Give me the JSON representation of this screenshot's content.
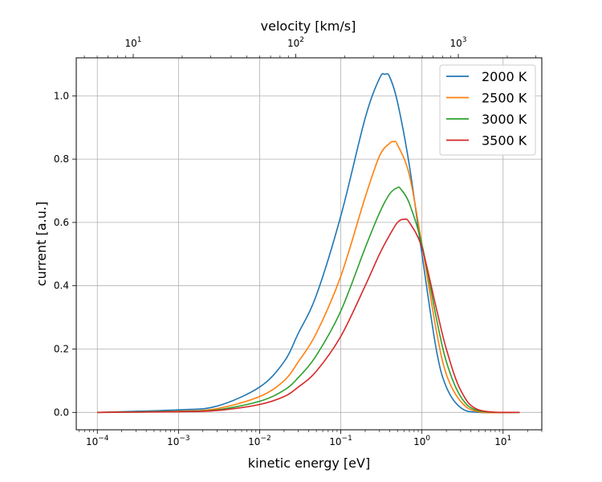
{
  "chart_data": {
    "type": "line",
    "xlabel": "kinetic energy [eV]",
    "ylabel": "current [a.u.]",
    "x2label": "velocity [km/s]",
    "xscale": "log",
    "x2scale": "log",
    "xlim": [
      5.5e-05,
      30
    ],
    "ylim": [
      -0.055,
      1.12
    ],
    "x_ticks": [
      {
        "base": "10",
        "exp": "−4",
        "value": 0.0001
      },
      {
        "base": "10",
        "exp": "−3",
        "value": 0.001
      },
      {
        "base": "10",
        "exp": "−2",
        "value": 0.01
      },
      {
        "base": "10",
        "exp": "−1",
        "value": 0.1
      },
      {
        "base": "10",
        "exp": "0",
        "value": 1
      },
      {
        "base": "10",
        "exp": "1",
        "value": 10
      }
    ],
    "x2_ticks": [
      {
        "base": "10",
        "exp": "1",
        "value": 10
      },
      {
        "base": "10",
        "exp": "2",
        "value": 100
      },
      {
        "base": "10",
        "exp": "3",
        "value": 1000
      }
    ],
    "y_ticks": [
      "0.0",
      "0.2",
      "0.4",
      "0.6",
      "0.8",
      "1.0"
    ],
    "grid": true,
    "legend_position": "upper right",
    "series": [
      {
        "name": "2000 K",
        "color": "#1f77b4",
        "x": [
          0.0001,
          0.001,
          0.003,
          0.01,
          0.02,
          0.03,
          0.05,
          0.1,
          0.2,
          0.3,
          0.35,
          0.4,
          0.5,
          0.7,
          1.0,
          1.5,
          2.0,
          3.0,
          5.0,
          16.0
        ],
        "y": [
          0.0,
          0.008,
          0.02,
          0.08,
          0.16,
          0.25,
          0.37,
          0.62,
          0.93,
          1.055,
          1.068,
          1.06,
          0.98,
          0.78,
          0.5,
          0.2,
          0.08,
          0.015,
          0.0,
          0.0
        ]
      },
      {
        "name": "2500 K",
        "color": "#ff7f0e",
        "x": [
          0.0001,
          0.001,
          0.003,
          0.01,
          0.02,
          0.03,
          0.05,
          0.1,
          0.2,
          0.3,
          0.4,
          0.45,
          0.5,
          0.7,
          1.0,
          1.5,
          2.0,
          3.0,
          5.0,
          16.0
        ],
        "y": [
          0.0,
          0.004,
          0.012,
          0.05,
          0.1,
          0.16,
          0.25,
          0.43,
          0.68,
          0.81,
          0.85,
          0.855,
          0.845,
          0.75,
          0.53,
          0.26,
          0.12,
          0.035,
          0.002,
          0.0
        ]
      },
      {
        "name": "3000 K",
        "color": "#2ca02c",
        "x": [
          0.0001,
          0.001,
          0.003,
          0.01,
          0.02,
          0.03,
          0.05,
          0.1,
          0.2,
          0.3,
          0.4,
          0.5,
          0.55,
          0.7,
          1.0,
          1.5,
          2.0,
          3.0,
          5.0,
          16.0
        ],
        "y": [
          0.0,
          0.003,
          0.008,
          0.035,
          0.07,
          0.11,
          0.18,
          0.32,
          0.52,
          0.63,
          0.69,
          0.71,
          0.705,
          0.66,
          0.53,
          0.3,
          0.16,
          0.05,
          0.005,
          0.0
        ]
      },
      {
        "name": "3500 K",
        "color": "#d62728",
        "x": [
          0.0001,
          0.001,
          0.003,
          0.01,
          0.02,
          0.03,
          0.05,
          0.1,
          0.2,
          0.3,
          0.4,
          0.5,
          0.6,
          0.7,
          1.0,
          1.5,
          2.0,
          3.0,
          5.0,
          16.0
        ],
        "y": [
          0.0,
          0.002,
          0.006,
          0.025,
          0.05,
          0.08,
          0.13,
          0.24,
          0.4,
          0.5,
          0.56,
          0.6,
          0.61,
          0.6,
          0.52,
          0.33,
          0.2,
          0.07,
          0.008,
          0.0
        ]
      }
    ]
  }
}
